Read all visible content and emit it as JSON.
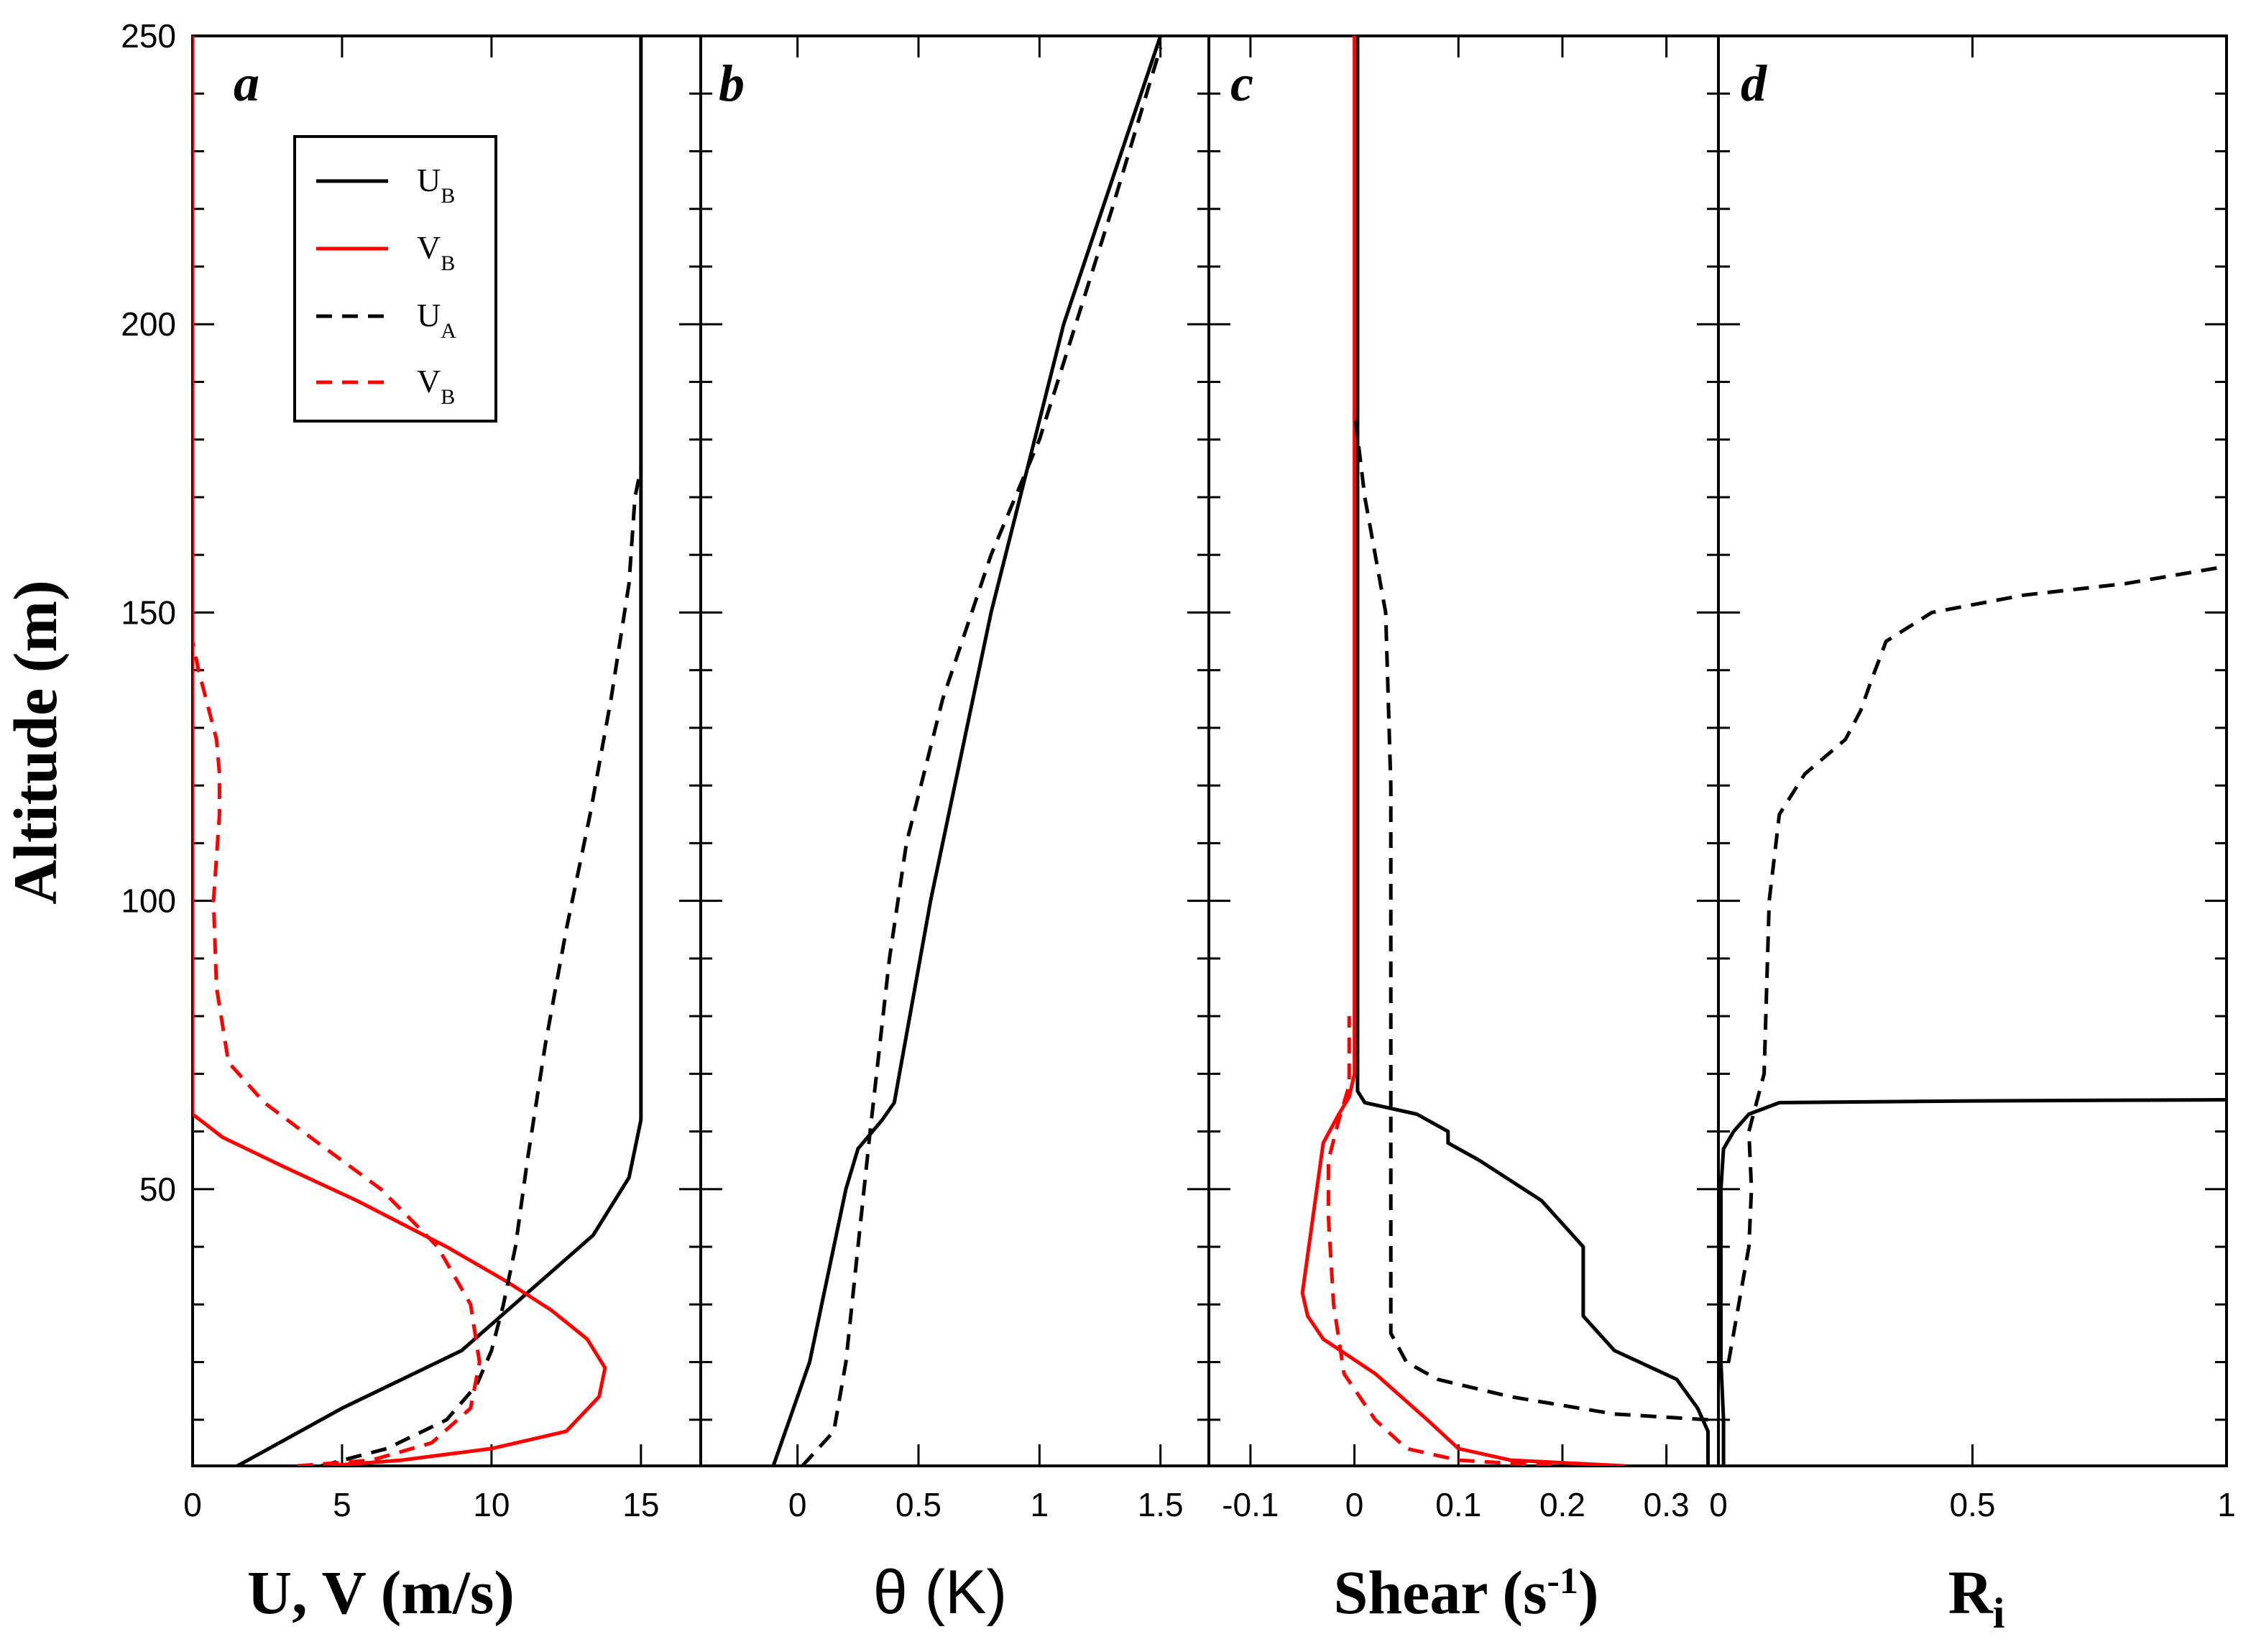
{
  "y_axis": {
    "title": "Altitude (m)",
    "ticks": [
      "50",
      "100",
      "150",
      "200",
      "250"
    ],
    "range": [
      2,
      250
    ]
  },
  "legend": {
    "entries": [
      {
        "label": "U",
        "sub": "B",
        "color": "#000000",
        "dash": false
      },
      {
        "label": "V",
        "sub": "B",
        "color": "#ff0000",
        "dash": false
      },
      {
        "label": "U",
        "sub": "A",
        "color": "#000000",
        "dash": true
      },
      {
        "label": "V",
        "sub": "B",
        "color": "#ff0000",
        "dash": true
      }
    ]
  },
  "chart_data": [
    {
      "panel": "a",
      "type": "line",
      "xlabel": "U, V (m/s)",
      "ylabel": "Altitude (m)",
      "xlim": [
        0,
        17
      ],
      "ylim": [
        2,
        250
      ],
      "xticks": [
        "0",
        "5",
        "10",
        "15"
      ],
      "xtick_values": [
        0,
        5,
        10,
        15
      ],
      "series": [
        {
          "name": "U_B",
          "color": "#000000",
          "dash": false,
          "points": [
            [
              1.5,
              2
            ],
            [
              5,
              12
            ],
            [
              9,
              22
            ],
            [
              11.2,
              32
            ],
            [
              13.4,
              42
            ],
            [
              14.6,
              52
            ],
            [
              15,
              62
            ],
            [
              15,
              100
            ],
            [
              15,
              200
            ],
            [
              15,
              250
            ]
          ]
        },
        {
          "name": "V_B",
          "color": "#ff0000",
          "dash": false,
          "points": [
            [
              4.5,
              2
            ],
            [
              7,
              3
            ],
            [
              10,
              5
            ],
            [
              12.5,
              8
            ],
            [
              13.6,
              14
            ],
            [
              13.8,
              19
            ],
            [
              13.2,
              24
            ],
            [
              12,
              29
            ],
            [
              10.5,
              34
            ],
            [
              8.5,
              40
            ],
            [
              5.5,
              48
            ],
            [
              3,
              54
            ],
            [
              1,
              59
            ],
            [
              0,
              63
            ],
            [
              0,
              100
            ],
            [
              0,
              250
            ]
          ]
        },
        {
          "name": "U_A",
          "color": "#000000",
          "dash": true,
          "points": [
            [
              4.3,
              2
            ],
            [
              6.5,
              5
            ],
            [
              8.5,
              10
            ],
            [
              9.5,
              16
            ],
            [
              10,
              22
            ],
            [
              10.4,
              30
            ],
            [
              10.8,
              40
            ],
            [
              11.2,
              55
            ],
            [
              11.8,
              75
            ],
            [
              12.5,
              95
            ],
            [
              13.3,
              115
            ],
            [
              14,
              135
            ],
            [
              14.6,
              155
            ],
            [
              14.8,
              170
            ],
            [
              15,
              175
            ]
          ]
        },
        {
          "name": "V_B",
          "color": "#ff0000",
          "dash": true,
          "points": [
            [
              3.5,
              2
            ],
            [
              6,
              3
            ],
            [
              8,
              6
            ],
            [
              9.3,
              12
            ],
            [
              9.6,
              20
            ],
            [
              9.3,
              30
            ],
            [
              8.2,
              40
            ],
            [
              6.3,
              50
            ],
            [
              4.2,
              58
            ],
            [
              2.4,
              65
            ],
            [
              1.2,
              72
            ],
            [
              0.8,
              85
            ],
            [
              0.7,
              100
            ],
            [
              0.9,
              115
            ],
            [
              0.9,
              122
            ],
            [
              0.8,
              128
            ],
            [
              0.5,
              134
            ],
            [
              0.2,
              140
            ],
            [
              0,
              145
            ]
          ]
        }
      ]
    },
    {
      "panel": "b",
      "type": "line",
      "xlabel": "θ (K)",
      "ylabel": "",
      "xlim": [
        -0.4,
        1.7
      ],
      "ylim": [
        2,
        250
      ],
      "xticks": [
        "0",
        "0.5",
        "1",
        "1.5"
      ],
      "xtick_values": [
        0,
        0.5,
        1,
        1.5
      ],
      "series": [
        {
          "name": "U_B",
          "color": "#000000",
          "dash": false,
          "points": [
            [
              -0.1,
              2
            ],
            [
              0.05,
              20
            ],
            [
              0.2,
              50
            ],
            [
              0.25,
              57
            ],
            [
              0.35,
              62
            ],
            [
              0.4,
              65
            ],
            [
              0.55,
              100
            ],
            [
              0.8,
              150
            ],
            [
              1.1,
              200
            ],
            [
              1.5,
              250
            ]
          ]
        },
        {
          "name": "U_A",
          "color": "#000000",
          "dash": true,
          "points": [
            [
              0.02,
              2
            ],
            [
              0.15,
              8
            ],
            [
              0.2,
              20
            ],
            [
              0.25,
              40
            ],
            [
              0.3,
              60
            ],
            [
              0.38,
              90
            ],
            [
              0.45,
              110
            ],
            [
              0.6,
              135
            ],
            [
              0.8,
              160
            ],
            [
              1.0,
              180
            ],
            [
              1.15,
              200
            ],
            [
              1.3,
              220
            ],
            [
              1.5,
              248
            ]
          ]
        }
      ]
    },
    {
      "panel": "c",
      "type": "line",
      "xlabel": "Shear (s-1)",
      "ylabel": "",
      "xlim": [
        -0.14,
        0.35
      ],
      "ylim": [
        2,
        250
      ],
      "xticks": [
        "-0.1",
        "0",
        "0.1",
        "0.2",
        "0.3"
      ],
      "xtick_values": [
        -0.1,
        0,
        0.1,
        0.2,
        0.3
      ],
      "series": [
        {
          "name": "U_B",
          "color": "#000000",
          "dash": false,
          "points": [
            [
              0.34,
              2
            ],
            [
              0.34,
              8
            ],
            [
              0.33,
              12
            ],
            [
              0.31,
              17
            ],
            [
              0.25,
              22
            ],
            [
              0.22,
              28
            ],
            [
              0.22,
              40
            ],
            [
              0.18,
              48
            ],
            [
              0.12,
              55
            ],
            [
              0.09,
              58
            ],
            [
              0.09,
              60
            ],
            [
              0.06,
              63
            ],
            [
              0.01,
              65
            ],
            [
              0.003,
              67
            ],
            [
              0.003,
              100
            ],
            [
              0.003,
              250
            ]
          ]
        },
        {
          "name": "V_B",
          "color": "#ff0000",
          "dash": false,
          "points": [
            [
              0.26,
              2
            ],
            [
              0.15,
              3
            ],
            [
              0.1,
              5
            ],
            [
              0.07,
              10
            ],
            [
              0.02,
              18
            ],
            [
              -0.03,
              24
            ],
            [
              -0.045,
              28
            ],
            [
              -0.05,
              32
            ],
            [
              -0.04,
              45
            ],
            [
              -0.03,
              58
            ],
            [
              -0.015,
              63
            ],
            [
              -0.005,
              66
            ],
            [
              0,
              70
            ],
            [
              0,
              100
            ],
            [
              0,
              250
            ]
          ]
        },
        {
          "name": "U_A",
          "color": "#000000",
          "dash": true,
          "points": [
            [
              0.34,
              10
            ],
            [
              0.25,
              11
            ],
            [
              0.15,
              14
            ],
            [
              0.08,
              17
            ],
            [
              0.05,
              20
            ],
            [
              0.035,
              25
            ],
            [
              0.035,
              40
            ],
            [
              0.035,
              60
            ],
            [
              0.035,
              80
            ],
            [
              0.035,
              100
            ],
            [
              0.035,
              120
            ],
            [
              0.03,
              150
            ],
            [
              0.01,
              170
            ],
            [
              0,
              185
            ]
          ]
        },
        {
          "name": "V_B",
          "color": "#ff0000",
          "dash": true,
          "points": [
            [
              0.19,
              2
            ],
            [
              0.1,
              3
            ],
            [
              0.05,
              5
            ],
            [
              0.02,
              10
            ],
            [
              -0.01,
              18
            ],
            [
              -0.02,
              30
            ],
            [
              -0.025,
              45
            ],
            [
              -0.025,
              55
            ],
            [
              -0.015,
              62
            ],
            [
              -0.005,
              68
            ],
            [
              -0.005,
              80
            ]
          ]
        }
      ]
    },
    {
      "panel": "d",
      "type": "line",
      "xlabel": "Ri",
      "ylabel": "",
      "xlim": [
        0,
        1
      ],
      "ylim": [
        2,
        250
      ],
      "xticks": [
        "0",
        "0.5",
        "1"
      ],
      "xtick_values": [
        0,
        0.5,
        1
      ],
      "series": [
        {
          "name": "U_B",
          "color": "#000000",
          "dash": false,
          "points": [
            [
              0.01,
              2
            ],
            [
              0.01,
              10
            ],
            [
              0.005,
              20
            ],
            [
              0.005,
              50
            ],
            [
              0.01,
              57
            ],
            [
              0.03,
              60
            ],
            [
              0.06,
              63
            ],
            [
              0.12,
              65
            ],
            [
              0.5,
              65.3
            ],
            [
              1,
              65.5
            ]
          ]
        },
        {
          "name": "U_A",
          "color": "#000000",
          "dash": true,
          "points": [
            [
              0.02,
              20
            ],
            [
              0.04,
              30
            ],
            [
              0.06,
              40
            ],
            [
              0.065,
              50
            ],
            [
              0.06,
              60
            ],
            [
              0.09,
              70
            ],
            [
              0.1,
              100
            ],
            [
              0.12,
              115
            ],
            [
              0.17,
              122
            ],
            [
              0.25,
              128
            ],
            [
              0.28,
              133
            ],
            [
              0.3,
              138
            ],
            [
              0.33,
              145
            ],
            [
              0.42,
              150
            ],
            [
              0.6,
              153
            ],
            [
              0.8,
              155
            ],
            [
              1,
              158
            ]
          ]
        }
      ]
    }
  ]
}
